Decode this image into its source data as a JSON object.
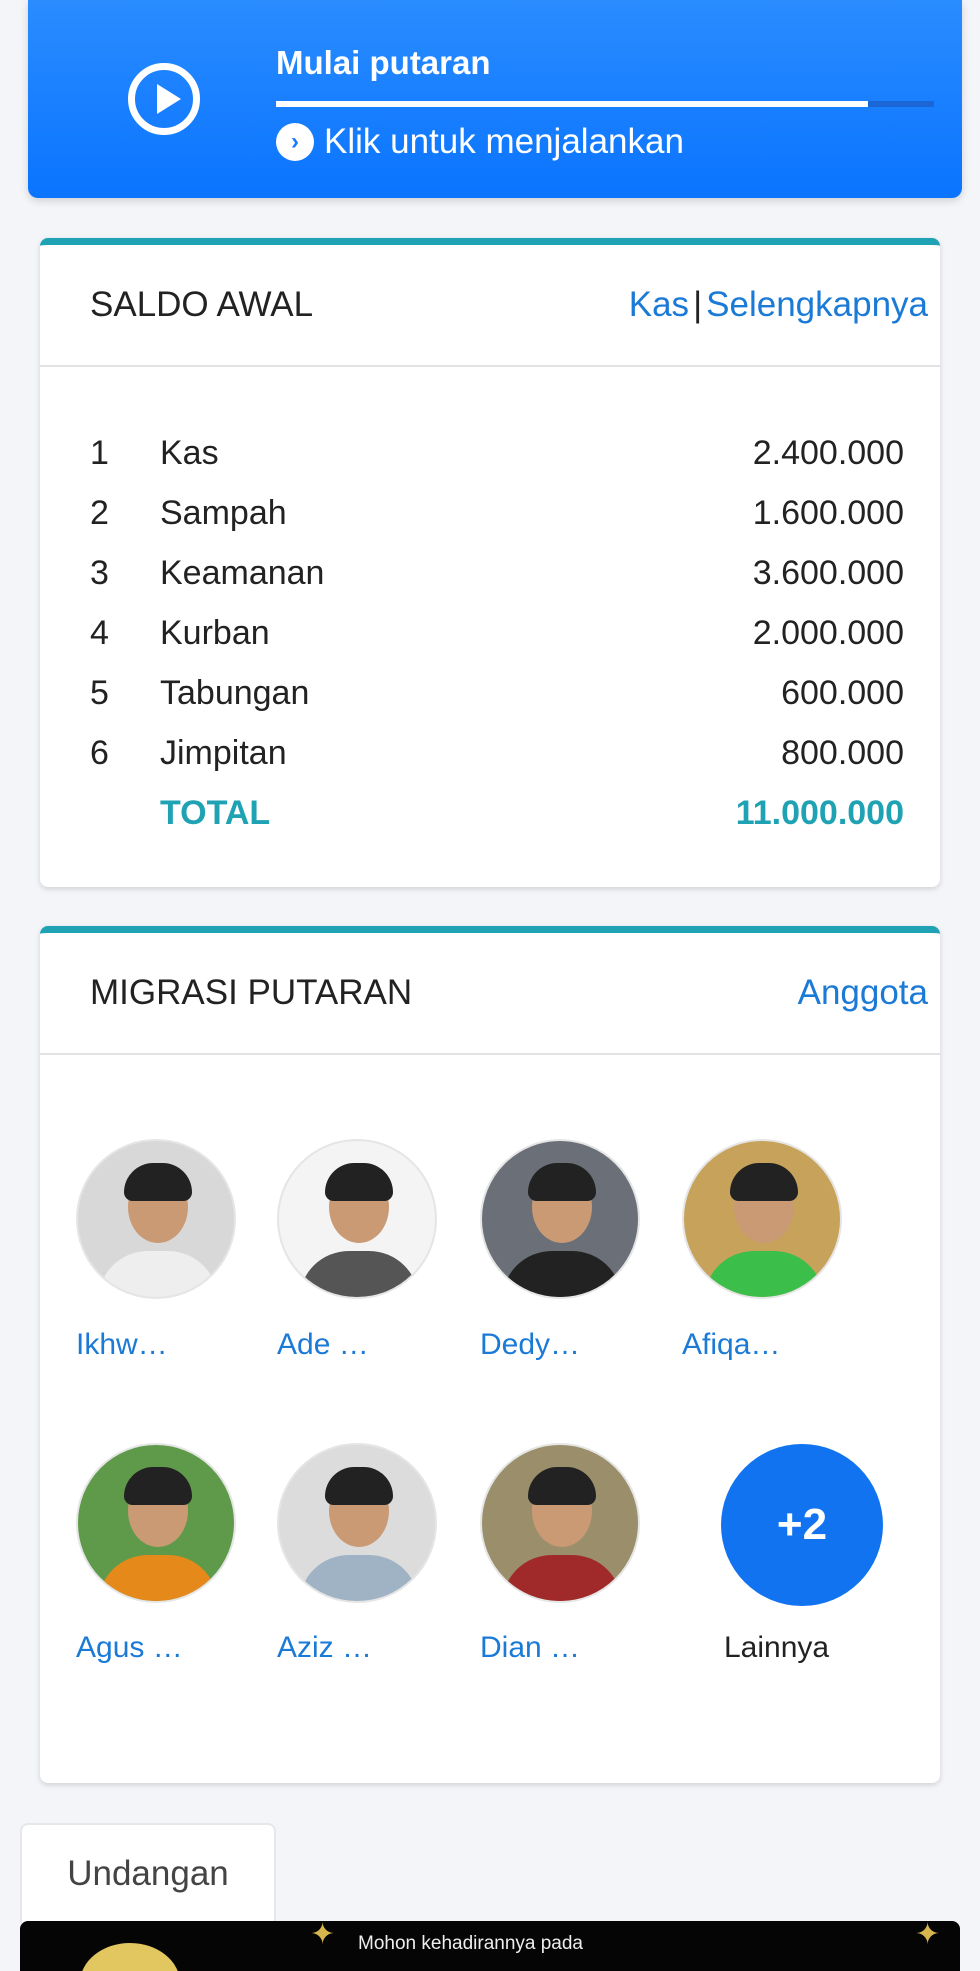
{
  "banner": {
    "title": "Mulai putaran",
    "subtitle": "Klik untuk menjalankan",
    "progress_percent": 90,
    "icon": "play-circle-icon"
  },
  "saldo": {
    "title": "SALDO AWAL",
    "link1": "Kas",
    "separator": "|",
    "link2": "Selengkapnya",
    "rows": [
      {
        "no": "1",
        "name": "Kas",
        "amount": "2.400.000"
      },
      {
        "no": "2",
        "name": "Sampah",
        "amount": "1.600.000"
      },
      {
        "no": "3",
        "name": "Keamanan",
        "amount": "3.600.000"
      },
      {
        "no": "4",
        "name": "Kurban",
        "amount": "2.000.000"
      },
      {
        "no": "5",
        "name": "Tabungan",
        "amount": "600.000"
      },
      {
        "no": "6",
        "name": "Jimpitan",
        "amount": "800.000"
      }
    ],
    "total_label": "TOTAL",
    "total": "11.000.000"
  },
  "migrasi": {
    "title": "MIGRASI PUTARAN",
    "link": "Anggota",
    "members": [
      {
        "name": "Ikhw…"
      },
      {
        "name": "Ade …"
      },
      {
        "name": "Dedy…"
      },
      {
        "name": "Afiqa…"
      },
      {
        "name": "Agus …"
      },
      {
        "name": "Aziz …"
      },
      {
        "name": "Dian …"
      }
    ],
    "more_count": "+2",
    "more_label": "Lainnya"
  },
  "tabs": {
    "undangan": "Undangan"
  },
  "invite": {
    "text": "Mohon kehadirannya pada"
  },
  "colors": {
    "primary": "#1a7cff",
    "accent": "#1fa2b3",
    "link": "#1a7ad6"
  }
}
